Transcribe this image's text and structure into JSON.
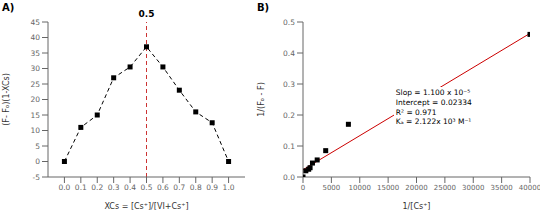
{
  "chart_data": [
    {
      "type": "line",
      "title": "A)",
      "x_label": "XCs = [Cs⁺]/[VI+Cs⁺]",
      "y_label": "(F- Fₒ)(1-XCs)",
      "xlim": [
        -0.1,
        1.1
      ],
      "ylim": [
        -5,
        45
      ],
      "xticks": [
        {
          "value": 0.0,
          "label": "0.0"
        },
        0.1,
        0.2,
        0.3,
        0.4,
        0.5,
        0.6,
        0.7,
        0.8,
        0.9,
        {
          "value": 1.0,
          "label": "1.0"
        }
      ],
      "yticks": [
        -5,
        0,
        5,
        10,
        15,
        20,
        25,
        30,
        35,
        40,
        45
      ],
      "grid": false,
      "series": [
        {
          "type": "line",
          "x": [
            0.0,
            0.1,
            0.2,
            0.3,
            0.4,
            0.5,
            0.6,
            0.7,
            0.8,
            0.9,
            1.0
          ],
          "values": [
            0.0,
            11.0,
            15.0,
            27.0,
            30.5,
            37.0,
            30.5,
            23.0,
            16.0,
            12.5,
            0.0
          ],
          "color": "black",
          "line_style": "dashed",
          "marker": "square"
        }
      ],
      "annotations": [
        {
          "text": "0.5",
          "x": 0.5,
          "color": "#cc3333",
          "line_style": "dashed"
        }
      ]
    },
    {
      "type": "scatter",
      "title": "B)",
      "x_label": "1/[Cs⁺]",
      "y_label": "1/(Fₒ - F)",
      "xlim": [
        0,
        40000
      ],
      "ylim": [
        0.0,
        0.5
      ],
      "xticks": [
        0,
        5000,
        10000,
        15000,
        20000,
        25000,
        30000,
        35000,
        40000
      ],
      "yticks": [
        {
          "value": 0.0,
          "label": "0.0"
        },
        0.1,
        0.2,
        0.3,
        0.4,
        0.5
      ],
      "grid": false,
      "series": [
        {
          "type": "line",
          "x": [
            0,
            40000
          ],
          "values": [
            0.02334,
            0.46334
          ],
          "color": "#cc0000"
        },
        {
          "type": "scatter",
          "x": [
            0,
            500,
            1000,
            1250,
            1667,
            2500,
            4000,
            8000,
            40000
          ],
          "values": [
            0.0,
            0.02,
            0.025,
            0.03,
            0.045,
            0.055,
            0.085,
            0.17,
            0.46
          ],
          "color": "black",
          "marker": "square"
        }
      ],
      "annotations": [
        {
          "text": "Slop = 1.100 x 10⁻⁵\nIntercept = 0.02334\nR² = 0.971\nKₐ = 2.122x 10³ M⁻¹"
        }
      ]
    }
  ]
}
